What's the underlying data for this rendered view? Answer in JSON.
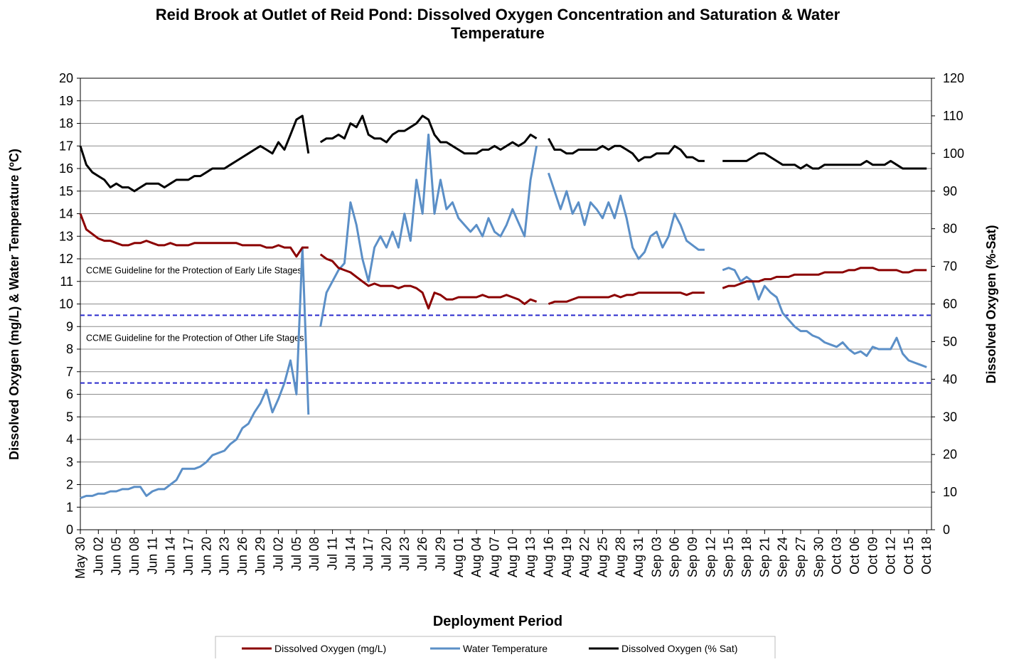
{
  "chart_data": {
    "type": "line",
    "title": "Reid Brook at Outlet of Reid Pond: Dissolved Oxygen Concentration and Saturation & Water Temperature",
    "xlabel": "Deployment Period",
    "ylabel": "Dissolved Oxygen (mg/L) & Water Temperature (ºC)",
    "y2label": "Dissolved Oxygen (%-Sat)",
    "categories": [
      "May 30",
      null,
      null,
      "Jun 02",
      null,
      null,
      "Jun 05",
      null,
      null,
      "Jun 08",
      null,
      null,
      "Jun 11",
      null,
      null,
      "Jun 14",
      null,
      null,
      "Jun 17",
      null,
      null,
      "Jun 20",
      null,
      null,
      "Jun 23",
      null,
      null,
      "Jun 26",
      null,
      null,
      "Jun 29",
      null,
      null,
      "Jul 02",
      null,
      null,
      "Jul 05",
      null,
      null,
      "Jul 08",
      null,
      null,
      "Jul 11",
      null,
      null,
      "Jul 14",
      null,
      null,
      "Jul 17",
      null,
      null,
      "Jul 20",
      null,
      null,
      "Jul 23",
      null,
      null,
      "Jul 26",
      null,
      null,
      "Jul 29",
      null,
      null,
      "Aug 01",
      null,
      null,
      "Aug 04",
      null,
      null,
      "Aug 07",
      null,
      null,
      "Aug 10",
      null,
      null,
      "Aug 13",
      null,
      null,
      "Aug 16",
      null,
      null,
      "Aug 19",
      null,
      null,
      "Aug 22",
      null,
      null,
      "Aug 25",
      null,
      null,
      "Aug 28",
      null,
      null,
      "Aug 31",
      null,
      null,
      "Sep 03",
      null,
      null,
      "Sep 06",
      null,
      null,
      "Sep 09",
      null,
      null,
      "Sep 12",
      null,
      null,
      "Sep 15",
      null,
      null,
      "Sep 18",
      null,
      null,
      "Sep 21",
      null,
      null,
      "Sep 24",
      null,
      null,
      "Sep 27",
      null,
      null,
      "Sep 30",
      null,
      null,
      "Oct 03",
      null,
      null,
      "Oct 06",
      null,
      null,
      "Oct 09",
      null,
      null,
      "Oct 12",
      null,
      null,
      "Oct 15",
      null,
      null,
      "Oct 18"
    ],
    "series": [
      {
        "name": "Dissolved Oxygen (mg/L)",
        "color": "#8b0000",
        "values": [
          14.0,
          13.3,
          13.1,
          12.9,
          12.8,
          12.8,
          12.7,
          12.6,
          12.6,
          12.7,
          12.7,
          12.8,
          12.7,
          12.6,
          12.6,
          12.7,
          12.6,
          12.6,
          12.6,
          12.7,
          12.7,
          12.7,
          12.7,
          12.7,
          12.7,
          12.7,
          12.7,
          12.6,
          12.6,
          12.6,
          12.6,
          12.5,
          12.5,
          12.6,
          12.5,
          12.5,
          12.1,
          12.5,
          12.5,
          null,
          12.2,
          12.0,
          11.9,
          11.6,
          11.5,
          11.4,
          11.2,
          11.0,
          10.8,
          10.9,
          10.8,
          10.8,
          10.8,
          10.7,
          10.8,
          10.8,
          10.7,
          10.5,
          9.8,
          10.5,
          10.4,
          10.2,
          10.2,
          10.3,
          10.3,
          10.3,
          10.3,
          10.4,
          10.3,
          10.3,
          10.3,
          10.4,
          10.3,
          10.2,
          10.0,
          10.2,
          10.1,
          null,
          10.0,
          10.1,
          10.1,
          10.1,
          10.2,
          10.3,
          10.3,
          10.3,
          10.3,
          10.3,
          10.3,
          10.4,
          10.3,
          10.4,
          10.4,
          10.5,
          10.5,
          10.5,
          10.5,
          10.5,
          10.5,
          10.5,
          10.5,
          10.4,
          10.5,
          10.5,
          10.5,
          null,
          null,
          10.7,
          10.8,
          10.8,
          10.9,
          11.0,
          11.0,
          11.0,
          11.1,
          11.1,
          11.2,
          11.2,
          11.2,
          11.3,
          11.3,
          11.3,
          11.3,
          11.3,
          11.4,
          11.4,
          11.4,
          11.4,
          11.5,
          11.5,
          11.6,
          11.6,
          11.6,
          11.5,
          11.5,
          11.5,
          11.5,
          11.4,
          11.4,
          11.5,
          11.5,
          11.5
        ]
      },
      {
        "name": "Water Temperature",
        "color": "#5b8fc7",
        "values": [
          1.4,
          1.5,
          1.5,
          1.6,
          1.6,
          1.7,
          1.7,
          1.8,
          1.8,
          1.9,
          1.9,
          1.5,
          1.7,
          1.8,
          1.8,
          2.0,
          2.2,
          2.7,
          2.7,
          2.7,
          2.8,
          3.0,
          3.3,
          3.4,
          3.5,
          3.8,
          4.0,
          4.5,
          4.7,
          5.2,
          5.6,
          6.2,
          5.2,
          5.8,
          6.5,
          7.5,
          6.0,
          12.5,
          5.1,
          null,
          9.0,
          10.5,
          11.0,
          11.5,
          11.8,
          14.5,
          13.5,
          12.0,
          11.0,
          12.5,
          13.0,
          12.5,
          13.2,
          12.5,
          14.0,
          12.8,
          15.5,
          14.0,
          17.5,
          14.0,
          15.5,
          14.2,
          14.5,
          13.8,
          13.5,
          13.2,
          13.5,
          13.0,
          13.8,
          13.2,
          13.0,
          13.5,
          14.2,
          13.6,
          13.0,
          15.5,
          17.0,
          null,
          15.8,
          15.0,
          14.2,
          15.0,
          14.0,
          14.5,
          13.5,
          14.5,
          14.2,
          13.8,
          14.5,
          13.8,
          14.8,
          13.8,
          12.5,
          12.0,
          12.3,
          13.0,
          13.2,
          12.5,
          13.0,
          14.0,
          13.5,
          12.8,
          12.6,
          12.4,
          12.4,
          null,
          null,
          11.5,
          11.6,
          11.5,
          11.0,
          11.2,
          11.0,
          10.2,
          10.8,
          10.5,
          10.3,
          9.6,
          9.3,
          9.0,
          8.8,
          8.8,
          8.6,
          8.5,
          8.3,
          8.2,
          8.1,
          8.3,
          8.0,
          7.8,
          7.9,
          7.7,
          8.1,
          8.0,
          8.0,
          8.0,
          8.5,
          7.8,
          7.5,
          7.4,
          7.3,
          7.2
        ]
      },
      {
        "name": "Dissolved Oxygen (% Sat)",
        "color": "#000000",
        "axis": "y2",
        "values": [
          102,
          97,
          95,
          94,
          93,
          91,
          92,
          91,
          91,
          90,
          91,
          92,
          92,
          92,
          91,
          92,
          93,
          93,
          93,
          94,
          94,
          95,
          96,
          96,
          96,
          97,
          98,
          99,
          100,
          101,
          102,
          101,
          100,
          103,
          101,
          105,
          109,
          110,
          100,
          null,
          103,
          104,
          104,
          105,
          104,
          108,
          107,
          110,
          105,
          104,
          104,
          103,
          105,
          106,
          106,
          107,
          108,
          110,
          109,
          105,
          103,
          103,
          102,
          101,
          100,
          100,
          100,
          101,
          101,
          102,
          101,
          102,
          103,
          102,
          103,
          105,
          104,
          null,
          104,
          101,
          101,
          100,
          100,
          101,
          101,
          101,
          101,
          102,
          101,
          102,
          102,
          101,
          100,
          98,
          99,
          99,
          100,
          100,
          100,
          102,
          101,
          99,
          99,
          98,
          98,
          null,
          null,
          98,
          98,
          98,
          98,
          98,
          99,
          100,
          100,
          99,
          98,
          97,
          97,
          97,
          96,
          97,
          96,
          96,
          97,
          97,
          97,
          97,
          97,
          97,
          97,
          98,
          97,
          97,
          97,
          98,
          97,
          96,
          96,
          96,
          96,
          96
        ]
      }
    ],
    "ylim": [
      0,
      20
    ],
    "yticks": [
      0,
      1,
      2,
      3,
      4,
      5,
      6,
      7,
      8,
      9,
      10,
      11,
      12,
      13,
      14,
      15,
      16,
      17,
      18,
      19,
      20
    ],
    "y2lim": [
      0,
      120
    ],
    "y2ticks": [
      0,
      10,
      20,
      30,
      40,
      50,
      60,
      70,
      80,
      90,
      100,
      110,
      120
    ],
    "grid": true,
    "reference_lines": [
      {
        "value": 9.5,
        "label": "CCME Guideline for the Protection of Early Life Stages",
        "color": "#2a2acc"
      },
      {
        "value": 6.5,
        "label": "CCME Guideline for the Protection of Other Life Stages",
        "color": "#2a2acc"
      }
    ],
    "legend": "bottom"
  }
}
